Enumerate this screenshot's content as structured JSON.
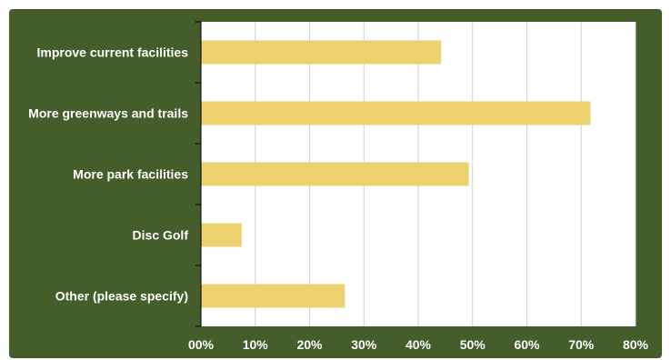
{
  "chart_data": {
    "type": "bar",
    "orientation": "horizontal",
    "categories": [
      "Improve current facilities",
      "More greenways and trails",
      "More park facilities",
      "Disc Golf",
      "Other (please specify)"
    ],
    "values": [
      0.442,
      0.717,
      0.493,
      0.075,
      0.265
    ],
    "x_ticks": [
      "00%",
      "10%",
      "20%",
      "30%",
      "40%",
      "50%",
      "60%",
      "70%",
      "80%"
    ],
    "xlim": [
      0,
      0.8
    ],
    "grid": "vertical",
    "legend": "none",
    "colors": {
      "background": "#445d2b",
      "plot_area": "#ffffff",
      "bar": "#ecd16e",
      "grid": "#cfcfcf",
      "axis": "#000000",
      "text": "#ffffff"
    }
  }
}
